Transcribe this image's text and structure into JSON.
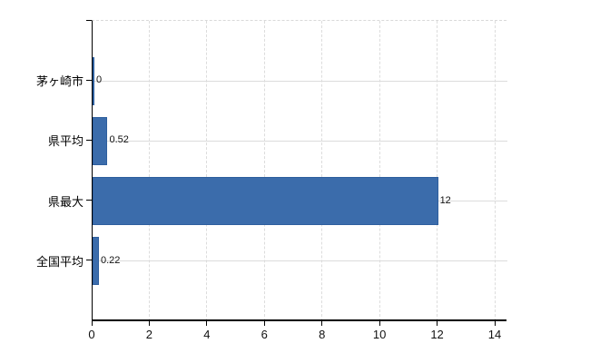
{
  "chart_data": {
    "type": "bar",
    "orientation": "horizontal",
    "categories": [
      "茅ヶ崎市",
      "県平均",
      "県最大",
      "全国平均"
    ],
    "values": [
      0,
      0.52,
      12,
      0.22
    ],
    "value_labels": [
      "0",
      "0.52",
      "12",
      "0.22"
    ],
    "x_ticks": [
      0,
      2,
      4,
      6,
      8,
      10,
      12,
      14
    ],
    "x_tick_labels": [
      "0",
      "2",
      "4",
      "6",
      "8",
      "10",
      "12",
      "14"
    ],
    "xlim": [
      0,
      14
    ],
    "title": "",
    "xlabel": "",
    "ylabel": "",
    "grid": true,
    "legend": null,
    "colors": {
      "bar_fill": "#3b6cab",
      "bar_border": "#2e5f9e",
      "gridline": "#dcdcdc",
      "axis": "#000000",
      "background": "#ffffff",
      "tick_text": "#111111"
    }
  }
}
